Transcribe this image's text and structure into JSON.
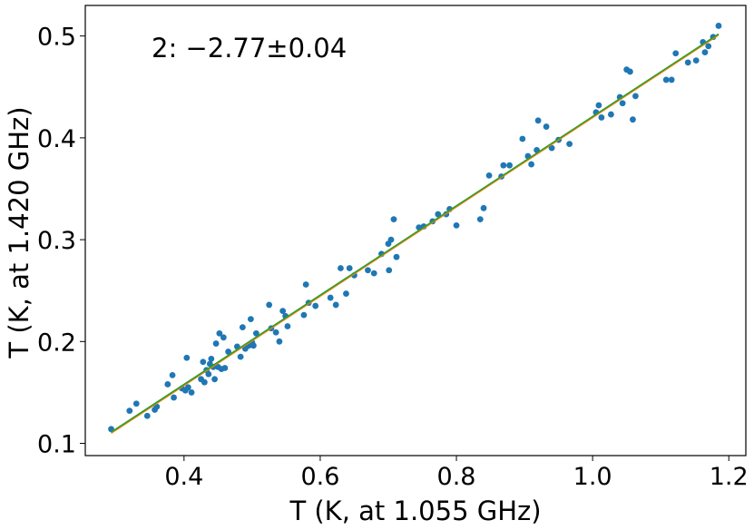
{
  "chart_data": {
    "type": "scatter",
    "title": "",
    "annotation": "2: −2.77±0.04",
    "xlabel": "T (K, at 1.055 GHz)",
    "ylabel": "T (K, at 1.420 GHz)",
    "xlim": [
      0.255,
      1.225
    ],
    "ylim": [
      0.088,
      0.53
    ],
    "xticks": [
      0.4,
      0.6,
      0.8,
      1.0,
      1.2
    ],
    "xtick_labels": [
      "0.4",
      "0.6",
      "0.8",
      "1.0",
      "1.2"
    ],
    "yticks": [
      0.1,
      0.2,
      0.3,
      0.4,
      0.5
    ],
    "ytick_labels": [
      "0.1",
      "0.2",
      "0.3",
      "0.4",
      "0.5"
    ],
    "grid": false,
    "colors": {
      "points": "#1f77b4",
      "fit_orange": "#ff7f0e",
      "fit_green": "#2ca02c"
    },
    "series": [
      {
        "type": "scatter",
        "points": [
          [
            0.293,
            0.114
          ],
          [
            0.32,
            0.132
          ],
          [
            0.33,
            0.139
          ],
          [
            0.346,
            0.127
          ],
          [
            0.357,
            0.133
          ],
          [
            0.36,
            0.136
          ],
          [
            0.376,
            0.158
          ],
          [
            0.383,
            0.167
          ],
          [
            0.385,
            0.145
          ],
          [
            0.397,
            0.154
          ],
          [
            0.402,
            0.152
          ],
          [
            0.404,
            0.184
          ],
          [
            0.406,
            0.155
          ],
          [
            0.411,
            0.15
          ],
          [
            0.425,
            0.163
          ],
          [
            0.428,
            0.18
          ],
          [
            0.43,
            0.16
          ],
          [
            0.433,
            0.172
          ],
          [
            0.436,
            0.168
          ],
          [
            0.438,
            0.178
          ],
          [
            0.44,
            0.183
          ],
          [
            0.443,
            0.175
          ],
          [
            0.445,
            0.163
          ],
          [
            0.447,
            0.198
          ],
          [
            0.45,
            0.175
          ],
          [
            0.452,
            0.208
          ],
          [
            0.455,
            0.173
          ],
          [
            0.458,
            0.204
          ],
          [
            0.46,
            0.174
          ],
          [
            0.465,
            0.19
          ],
          [
            0.478,
            0.195
          ],
          [
            0.483,
            0.185
          ],
          [
            0.486,
            0.214
          ],
          [
            0.49,
            0.193
          ],
          [
            0.495,
            0.196
          ],
          [
            0.498,
            0.222
          ],
          [
            0.5,
            0.199
          ],
          [
            0.502,
            0.196
          ],
          [
            0.506,
            0.208
          ],
          [
            0.525,
            0.236
          ],
          [
            0.528,
            0.213
          ],
          [
            0.535,
            0.209
          ],
          [
            0.54,
            0.2
          ],
          [
            0.545,
            0.23
          ],
          [
            0.549,
            0.225
          ],
          [
            0.552,
            0.215
          ],
          [
            0.576,
            0.226
          ],
          [
            0.579,
            0.256
          ],
          [
            0.583,
            0.238
          ],
          [
            0.593,
            0.235
          ],
          [
            0.615,
            0.243
          ],
          [
            0.623,
            0.236
          ],
          [
            0.63,
            0.272
          ],
          [
            0.638,
            0.247
          ],
          [
            0.643,
            0.272
          ],
          [
            0.65,
            0.265
          ],
          [
            0.67,
            0.27
          ],
          [
            0.679,
            0.267
          ],
          [
            0.69,
            0.286
          ],
          [
            0.7,
            0.296
          ],
          [
            0.701,
            0.27
          ],
          [
            0.704,
            0.3
          ],
          [
            0.708,
            0.32
          ],
          [
            0.712,
            0.283
          ],
          [
            0.745,
            0.312
          ],
          [
            0.752,
            0.313
          ],
          [
            0.765,
            0.318
          ],
          [
            0.773,
            0.325
          ],
          [
            0.785,
            0.325
          ],
          [
            0.79,
            0.33
          ],
          [
            0.8,
            0.314
          ],
          [
            0.835,
            0.32
          ],
          [
            0.84,
            0.331
          ],
          [
            0.848,
            0.363
          ],
          [
            0.866,
            0.362
          ],
          [
            0.869,
            0.373
          ],
          [
            0.878,
            0.373
          ],
          [
            0.897,
            0.399
          ],
          [
            0.905,
            0.382
          ],
          [
            0.91,
            0.374
          ],
          [
            0.918,
            0.388
          ],
          [
            0.92,
            0.417
          ],
          [
            0.932,
            0.411
          ],
          [
            0.94,
            0.39
          ],
          [
            0.95,
            0.398
          ],
          [
            0.966,
            0.394
          ],
          [
            1.005,
            0.425
          ],
          [
            1.009,
            0.432
          ],
          [
            1.013,
            0.42
          ],
          [
            1.027,
            0.423
          ],
          [
            1.04,
            0.44
          ],
          [
            1.044,
            0.434
          ],
          [
            1.05,
            0.467
          ],
          [
            1.055,
            0.465
          ],
          [
            1.059,
            0.418
          ],
          [
            1.063,
            0.441
          ],
          [
            1.108,
            0.457
          ],
          [
            1.116,
            0.457
          ],
          [
            1.122,
            0.483
          ],
          [
            1.14,
            0.474
          ],
          [
            1.152,
            0.476
          ],
          [
            1.162,
            0.494
          ],
          [
            1.165,
            0.484
          ],
          [
            1.17,
            0.49
          ],
          [
            1.177,
            0.499
          ],
          [
            1.185,
            0.51
          ]
        ]
      },
      {
        "type": "line",
        "color": "orange",
        "x": [
          0.293,
          1.185
        ],
        "y": [
          0.11,
          0.501
        ]
      },
      {
        "type": "line",
        "color": "green",
        "x": [
          0.293,
          1.185
        ],
        "y": [
          0.111,
          0.502
        ]
      }
    ]
  }
}
